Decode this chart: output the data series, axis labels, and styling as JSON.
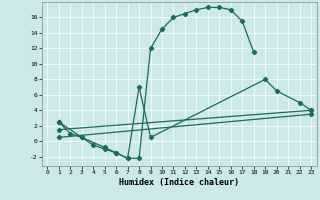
{
  "xlabel": "Humidex (Indice chaleur)",
  "bg_color": "#cce8e8",
  "line_color": "#1a6b60",
  "xlim": [
    -0.5,
    23.5
  ],
  "ylim": [
    -3.2,
    18.0
  ],
  "yticks": [
    -2,
    0,
    2,
    4,
    6,
    8,
    10,
    12,
    14,
    16
  ],
  "xticks": [
    0,
    1,
    2,
    3,
    4,
    5,
    6,
    7,
    8,
    9,
    10,
    11,
    12,
    13,
    14,
    15,
    16,
    17,
    18,
    19,
    20,
    21,
    22,
    23
  ],
  "line1_x": [
    1,
    2,
    3,
    4,
    5,
    6,
    7,
    8,
    9,
    10,
    11,
    12,
    13,
    14,
    15,
    16,
    17,
    18
  ],
  "line1_y": [
    2.5,
    1.0,
    0.5,
    -0.5,
    -1.0,
    -1.5,
    -2.2,
    -2.2,
    12.0,
    14.5,
    16.0,
    16.5,
    17.0,
    17.3,
    17.3,
    17.0,
    15.5,
    11.5
  ],
  "line2_x": [
    1,
    3,
    5,
    6,
    7,
    8,
    9,
    19,
    20,
    22,
    23
  ],
  "line2_y": [
    2.5,
    0.5,
    -0.8,
    -1.5,
    -2.2,
    7.0,
    0.5,
    8.0,
    6.5,
    5.0,
    4.0
  ],
  "line3_x": [
    1,
    23
  ],
  "line3_y": [
    1.5,
    4.0
  ],
  "line4_x": [
    1,
    23
  ],
  "line4_y": [
    0.5,
    3.5
  ]
}
